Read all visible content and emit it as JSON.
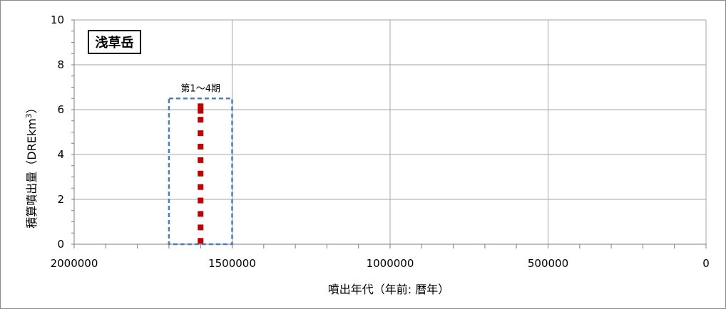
{
  "chart_data": {
    "type": "scatter",
    "title": "浅草岳",
    "xlabel": "噴出年代（年前: 暦年）",
    "ylabel": "積算噴出量（DREkm",
    "ylabel_superscript": "3",
    "ylabel_close": "）",
    "xlim": [
      2000000,
      0
    ],
    "ylim": [
      0,
      10
    ],
    "x_ticks": [
      2000000,
      1500000,
      1000000,
      500000,
      0
    ],
    "x_tick_labels": [
      "2000000",
      "1500000",
      "1000000",
      "500000",
      "0"
    ],
    "x_minor_step": 100000,
    "y_ticks": [
      0,
      2,
      4,
      6,
      8,
      10
    ],
    "y_tick_labels": [
      "0",
      "2",
      "4",
      "6",
      "8",
      "10"
    ],
    "grid": true,
    "series": [
      {
        "x": [
          1600000,
          1600000,
          1600000,
          1600000,
          1600000,
          1600000,
          1600000,
          1600000,
          1600000,
          1600000,
          1600000,
          1600000
        ],
        "y": [
          0.15,
          0.75,
          1.35,
          1.95,
          2.55,
          3.15,
          3.75,
          4.35,
          4.95,
          5.55,
          5.95,
          6.15
        ],
        "color": "#c00000",
        "marker": "square"
      }
    ],
    "annotations": [
      {
        "text": "第1～4期",
        "x_range": [
          1700000,
          1500000
        ],
        "y_range": [
          0,
          6.5
        ],
        "style": "dashed-box",
        "color": "#4a7ebb"
      }
    ]
  }
}
